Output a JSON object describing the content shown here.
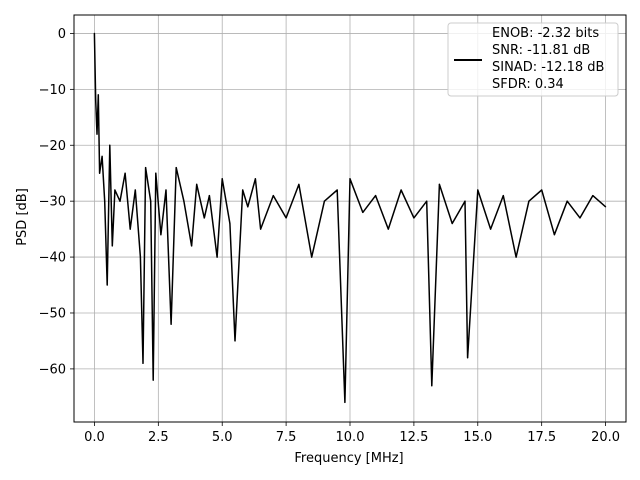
{
  "chart_data": {
    "type": "line",
    "xlabel": "Frequency [MHz]",
    "ylabel": "PSD [dB]",
    "xlim": [
      -0.8,
      20.8
    ],
    "ylim": [
      -69.5,
      3.3
    ],
    "x_ticks": [
      0.0,
      2.5,
      5.0,
      7.5,
      10.0,
      12.5,
      15.0,
      17.5,
      20.0
    ],
    "x_tick_labels": [
      "0.0",
      "2.5",
      "5.0",
      "7.5",
      "10.0",
      "12.5",
      "15.0",
      "17.5",
      "20.0"
    ],
    "y_ticks": [
      0,
      -10,
      -20,
      -30,
      -40,
      -50,
      -60
    ],
    "y_tick_labels": [
      "0",
      "−10",
      "−20",
      "−30",
      "−40",
      "−50",
      "−60"
    ],
    "grid": true,
    "legend_position": "top-right",
    "line_color": "#000000",
    "series": [
      {
        "legend_lines": [
          "ENOB: -2.32 bits",
          "SNR: -11.81 dB",
          "SINAD: -12.18 dB",
          "SFDR: 0.34"
        ],
        "x": [
          0.0,
          0.05,
          0.1,
          0.15,
          0.2,
          0.3,
          0.4,
          0.5,
          0.6,
          0.7,
          0.8,
          1.0,
          1.2,
          1.4,
          1.6,
          1.8,
          1.9,
          2.0,
          2.2,
          2.3,
          2.4,
          2.6,
          2.8,
          3.0,
          3.2,
          3.5,
          3.8,
          4.0,
          4.3,
          4.5,
          4.8,
          5.0,
          5.3,
          5.5,
          5.8,
          6.0,
          6.3,
          6.5,
          7.0,
          7.5,
          8.0,
          8.5,
          9.0,
          9.5,
          9.8,
          10.0,
          10.5,
          11.0,
          11.5,
          12.0,
          12.5,
          13.0,
          13.2,
          13.5,
          14.0,
          14.5,
          14.6,
          15.0,
          15.5,
          16.0,
          16.5,
          17.0,
          17.5,
          18.0,
          18.5,
          19.0,
          19.5,
          20.0
        ],
        "y": [
          0.0,
          -12.0,
          -18.0,
          -11.0,
          -25.0,
          -22.0,
          -30.0,
          -45.0,
          -20.0,
          -38.0,
          -28.0,
          -30.0,
          -25.0,
          -35.0,
          -28.0,
          -40.0,
          -59.0,
          -24.0,
          -30.0,
          -62.0,
          -25.0,
          -36.0,
          -28.0,
          -52.0,
          -24.0,
          -30.0,
          -38.0,
          -27.0,
          -33.0,
          -29.0,
          -40.0,
          -26.0,
          -34.0,
          -55.0,
          -28.0,
          -31.0,
          -26.0,
          -35.0,
          -29.0,
          -33.0,
          -27.0,
          -40.0,
          -30.0,
          -28.0,
          -66.0,
          -26.0,
          -32.0,
          -29.0,
          -35.0,
          -28.0,
          -33.0,
          -30.0,
          -63.0,
          -27.0,
          -34.0,
          -30.0,
          -58.0,
          -28.0,
          -35.0,
          -29.0,
          -40.0,
          -30.0,
          -28.0,
          -36.0,
          -30.0,
          -33.0,
          -29.0,
          -31.0
        ]
      }
    ]
  }
}
